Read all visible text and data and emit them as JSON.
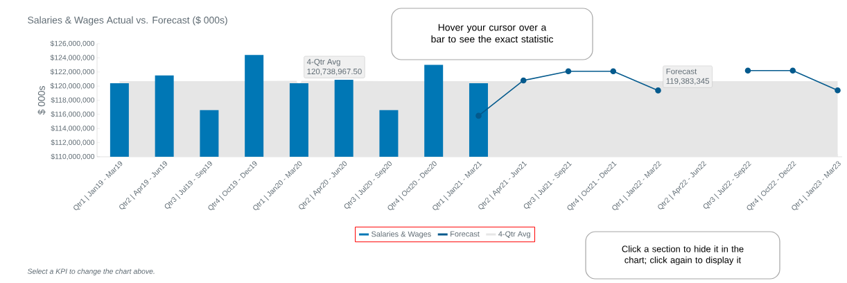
{
  "chart_data": {
    "type": "bar",
    "title": "Salaries & Wages Actual vs. Forecast ($ 000s)",
    "ylabel": "$ 000s",
    "categories": [
      "Qtr1 | Jan19 - Mar19",
      "Qtr2 | Apr19 - Jun19",
      "Qtr3 | Jul19 - Sep19",
      "Qtr4 | Oct19 - Dec19",
      "Qtr1 | Jan20 - Mar20",
      "Qtr2 | Apr20 - Jun20",
      "Qtr3 | Jul20 - Sep20",
      "Qtr4 | Oct20 - Dec20",
      "Qtr1 | Jan21 - Mar21",
      "Qtr2 | Apr21 - Jun21",
      "Qtr3 | Jul21 - Sep21",
      "Qtr4 | Oct21 - Dec21",
      "Qtr1 | Jan22 - Mar22",
      "Qtr2 | Apr22 - Jun22",
      "Qtr3 | Jul22 - Sep22",
      "Qtr4 | Oct22 - Dec22",
      "Qtr1 | Jan23 - Mar23"
    ],
    "series": [
      {
        "name": "Salaries & Wages",
        "color": "#0077b5",
        "values": [
          120400000,
          121500000,
          116600000,
          124400000,
          120400000,
          120900000,
          116600000,
          123000000,
          120400000,
          null,
          null,
          null,
          null,
          null,
          null,
          null,
          null
        ]
      },
      {
        "name": "Forecast",
        "type": "line",
        "color": "#045a8d",
        "marker": "circle",
        "values": [
          null,
          null,
          null,
          null,
          null,
          null,
          null,
          null,
          115800000,
          120800000,
          122100000,
          122100000,
          119383345,
          null,
          122200000,
          122200000,
          119400000
        ],
        "value_labels": [
          null,
          null,
          null,
          null,
          null,
          null,
          null,
          null,
          null,
          null,
          null,
          null,
          "119,383,345",
          null,
          null,
          null,
          null
        ]
      },
      {
        "name": "4-Qtr Avg",
        "type": "area",
        "color": "#e6e6e6",
        "values": [
          120700000,
          null,
          120700000,
          null,
          120738967.5,
          null,
          120700000,
          null,
          120700000,
          120700000,
          120700000,
          120700000,
          120700000,
          null,
          120700000,
          120700000,
          120700000
        ],
        "value_labels": [
          null,
          null,
          null,
          null,
          "120,738,967.50",
          null,
          null,
          null,
          null,
          null,
          null,
          null,
          null,
          null,
          null,
          null,
          null
        ]
      }
    ],
    "ylim": [
      110000000,
      126000000
    ],
    "yticks": [
      {
        "value": 110000000,
        "label": "$110,000,000"
      },
      {
        "value": 112000000,
        "label": "$112,000,000"
      },
      {
        "value": 114000000,
        "label": "$114,000,000"
      },
      {
        "value": 116000000,
        "label": "$116,000,000"
      },
      {
        "value": 118000000,
        "label": "$118,000,000"
      },
      {
        "value": 120000000,
        "label": "$120,000,000"
      },
      {
        "value": 122000000,
        "label": "$122,000,000"
      },
      {
        "value": 124000000,
        "label": "$124,000,000"
      },
      {
        "value": 126000000,
        "label": "$126,000,000"
      }
    ],
    "legend": "bottom",
    "annotations": [
      "Hover your cursor over a bar to see the exact statistic",
      "Click a section to hide it in the chart; click again to display it",
      "Select a KPI to change the chart above."
    ]
  }
}
